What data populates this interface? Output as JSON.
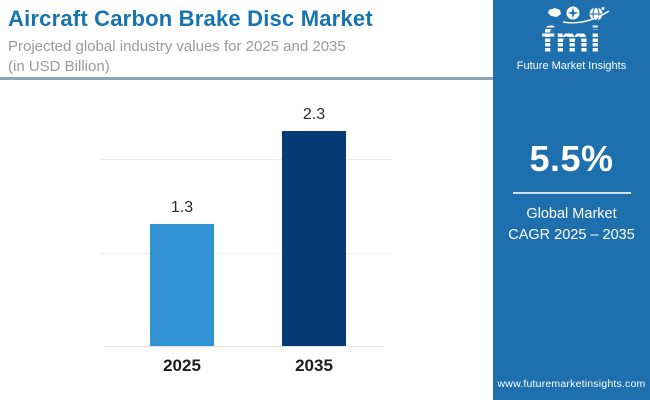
{
  "header": {
    "title": "Aircraft Carbon Brake Disc Market",
    "subtitle_line1": "Projected global industry values for 2025 and 2035",
    "subtitle_line2": "(in USD Billion)"
  },
  "chart_data": {
    "type": "bar",
    "categories": [
      "2025",
      "2035"
    ],
    "values": [
      1.3,
      2.3
    ],
    "title": "Aircraft Carbon Brake Disc Market",
    "subtitle": "Projected global industry values for 2025 and 2035 (in USD Billion)",
    "xlabel": "",
    "ylabel": "USD Billion",
    "ylim": [
      0,
      2.6
    ],
    "gridlines": [
      1.0,
      2.0
    ],
    "grid": "horizontal-only",
    "legend": "none",
    "bar_colors": [
      "#3293d3",
      "#053c75"
    ]
  },
  "sidebar": {
    "logo": {
      "text": "fmi",
      "caption": "Future Market Insights",
      "icons": [
        "map-icon",
        "compass-icon",
        "globe-icon"
      ]
    },
    "cagr_value": "5.5%",
    "cagr_label_line1": "Global Market",
    "cagr_label_line2": "CAGR 2025 – 2035",
    "website": "www.futuremarketinsights.com"
  },
  "colors": {
    "title_blue": "#1874ae",
    "subtitle_gray": "#9a9a9a",
    "header_divider": "#8ba6bb",
    "bar_2025": "#3293d3",
    "bar_2035": "#053c75",
    "gridline": "#ececec",
    "sidebar_blue": "#1e6fad",
    "stripe_green": "#7ab648",
    "stripe_orange": "#e96227",
    "stripe_purple": "#8e2b8d"
  }
}
